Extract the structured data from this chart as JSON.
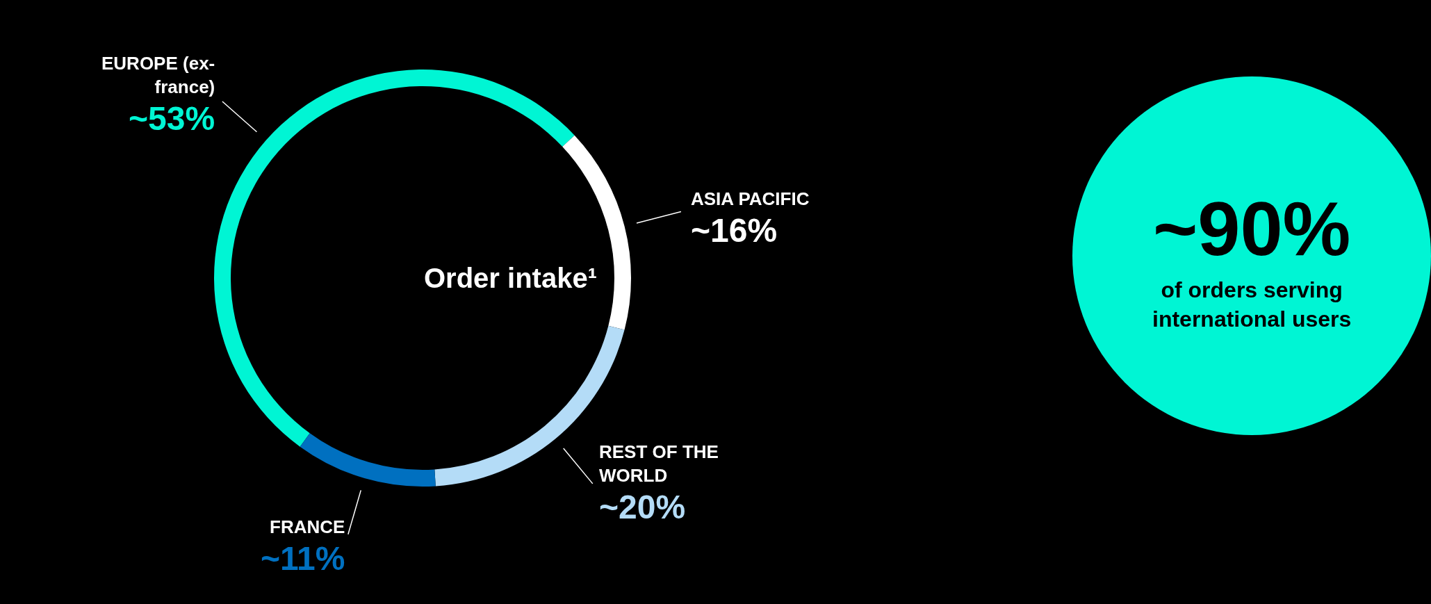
{
  "chart_data": {
    "type": "donut",
    "title": "Order intake¹",
    "categories": [
      "EUROPE (ex-france)",
      "ASIA PACIFIC",
      "REST OF THE WORLD",
      "FRANCE"
    ],
    "values": [
      53,
      16,
      20,
      11
    ],
    "colors": [
      "#00f5d4",
      "#ffffff",
      "#b4dcf7",
      "#0070c0"
    ],
    "value_labels": [
      "~53%",
      "~16%",
      "~20%",
      "~11%"
    ],
    "annotations": [
      "~90%",
      "of orders serving international users"
    ]
  }
}
